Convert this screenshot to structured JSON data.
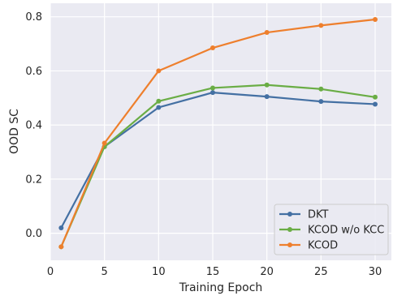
{
  "chart_data": {
    "type": "line",
    "xlabel": "Training Epoch",
    "ylabel": "OOD SC",
    "xlim": [
      0,
      31.5
    ],
    "ylim": [
      -0.1,
      0.85
    ],
    "xticks": [
      0,
      5,
      10,
      15,
      20,
      25,
      30
    ],
    "yticks": [
      0.0,
      0.2,
      0.4,
      0.6,
      0.8
    ],
    "x": [
      1,
      5,
      10,
      15,
      20,
      25,
      30
    ],
    "grid": true,
    "legend_position": "bottom-right",
    "series": [
      {
        "name": "DKT",
        "color": "#4470a3",
        "values": [
          0.02,
          0.32,
          0.465,
          0.52,
          0.505,
          0.487,
          0.477
        ]
      },
      {
        "name": "KCOD w/o KCC",
        "color": "#6aad45",
        "values": [
          -0.05,
          0.32,
          0.488,
          0.537,
          0.548,
          0.533,
          0.503
        ]
      },
      {
        "name": "KCOD",
        "color": "#ee7f2d",
        "values": [
          -0.05,
          0.333,
          0.6,
          0.685,
          0.742,
          0.768,
          0.79
        ]
      }
    ]
  }
}
